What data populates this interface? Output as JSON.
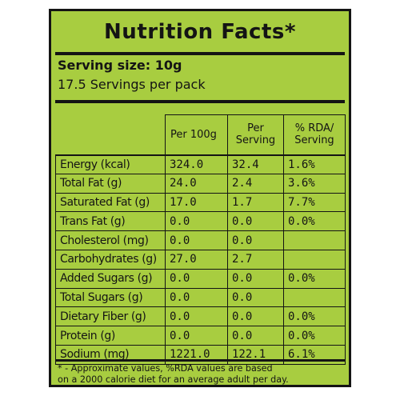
{
  "label": {
    "title": "Nutrition Facts*",
    "serving_size": "Serving size: 10g",
    "servings_per_pack": "17.5 Servings per pack",
    "background_color": "#a8cd40",
    "text_color": "#141414"
  },
  "table": {
    "columns": [
      "",
      "Per 100g",
      "Per Serving",
      "% RDA/ Serving"
    ],
    "rows": [
      {
        "name": "Energy (kcal)",
        "per_100g": "324.0",
        "per_serving": "32.4",
        "rda": "1.6%"
      },
      {
        "name": "Total Fat (g)",
        "per_100g": "24.0",
        "per_serving": "2.4",
        "rda": "3.6%"
      },
      {
        "name": "Saturated Fat (g)",
        "per_100g": "17.0",
        "per_serving": "1.7",
        "rda": "7.7%"
      },
      {
        "name": "Trans Fat (g)",
        "per_100g": "0.0",
        "per_serving": "0.0",
        "rda": "0.0%"
      },
      {
        "name": "Cholesterol (mg)",
        "per_100g": "0.0",
        "per_serving": "0.0",
        "rda": ""
      },
      {
        "name": "Carbohydrates (g)",
        "per_100g": "27.0",
        "per_serving": "2.7",
        "rda": ""
      },
      {
        "name": "Added Sugars (g)",
        "per_100g": "0.0",
        "per_serving": "0.0",
        "rda": "0.0%"
      },
      {
        "name": "Total Sugars (g)",
        "per_100g": "0.0",
        "per_serving": "0.0",
        "rda": ""
      },
      {
        "name": "Dietary Fiber (g)",
        "per_100g": "0.0",
        "per_serving": "0.0",
        "rda": "0.0%"
      },
      {
        "name": "Protein (g)",
        "per_100g": "0.0",
        "per_serving": "0.0",
        "rda": "0.0%"
      },
      {
        "name": "Sodium (mg)",
        "per_100g": "1221.0",
        "per_serving": "122.1",
        "rda": "6.1%"
      }
    ]
  },
  "footnote": "* - Approximate values, %RDA values are based\non a 2000 calorie diet for an average adult per day."
}
